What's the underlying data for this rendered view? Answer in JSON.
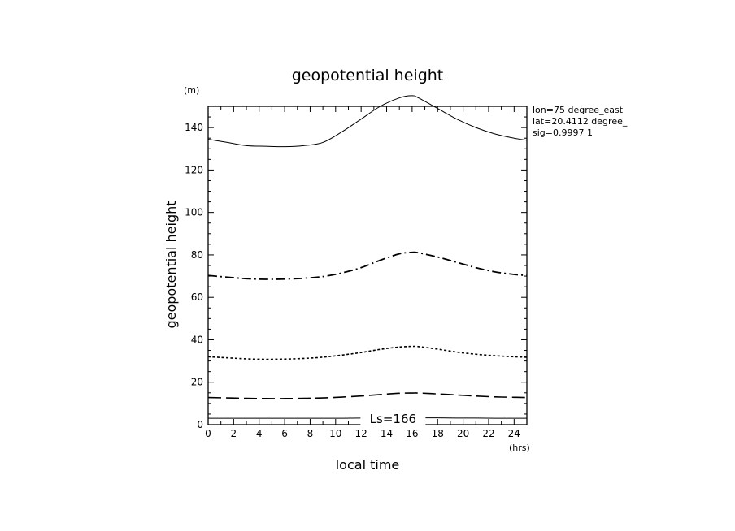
{
  "chart_data": {
    "type": "line",
    "title": "geopotential height",
    "xlabel": "local time",
    "ylabel": "geopotential height",
    "x_unit": "(hrs)",
    "y_unit": "(m)",
    "xlim": [
      0,
      25
    ],
    "ylim": [
      0,
      150
    ],
    "x_ticks": [
      0,
      2,
      4,
      6,
      8,
      10,
      12,
      14,
      16,
      18,
      20,
      22,
      24
    ],
    "y_ticks": [
      0,
      20,
      40,
      60,
      80,
      100,
      120,
      140
    ],
    "info": [
      "lon=75 degree_east",
      "lat=20.4112 degree_",
      "sig=0.9997 1"
    ],
    "annotation": "Ls=166",
    "line_color": "#000000",
    "x": [
      0,
      1.5,
      3,
      4.5,
      6,
      7.5,
      9,
      10.5,
      12,
      13.5,
      15,
      16,
      16.5,
      18,
      19.5,
      21,
      22.5,
      24,
      25
    ],
    "series": [
      {
        "style": "solid",
        "values": [
          134.5,
          133,
          131.5,
          131.2,
          131,
          131.5,
          133,
          138,
          144,
          150,
          154,
          155,
          154,
          149,
          144,
          140,
          137,
          135,
          134
        ]
      },
      {
        "style": "dash-dot",
        "values": [
          70.3,
          69.5,
          68.8,
          68.5,
          68.6,
          69,
          69.8,
          71.5,
          74,
          77.5,
          80.5,
          81.2,
          81,
          79,
          76.5,
          74,
          72,
          70.8,
          70.3
        ]
      },
      {
        "style": "dotted",
        "values": [
          32,
          31.5,
          31,
          30.8,
          30.9,
          31.2,
          31.8,
          32.8,
          34,
          35.5,
          36.6,
          36.9,
          36.8,
          35.6,
          34.2,
          33.2,
          32.5,
          32,
          31.8
        ]
      },
      {
        "style": "long-dash",
        "values": [
          12.8,
          12.6,
          12.4,
          12.3,
          12.3,
          12.4,
          12.6,
          13,
          13.5,
          14.2,
          14.8,
          14.9,
          14.9,
          14.5,
          14,
          13.5,
          13.1,
          12.9,
          12.8
        ]
      },
      {
        "style": "solid",
        "values": [
          3,
          3,
          3,
          3,
          3,
          3,
          3,
          3,
          3.1,
          3.1,
          3.2,
          3.2,
          3.2,
          3.2,
          3.1,
          3.1,
          3,
          3,
          3
        ]
      }
    ]
  }
}
